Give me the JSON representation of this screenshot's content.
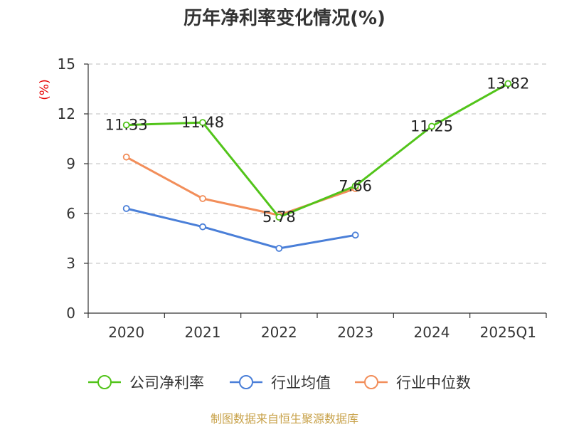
{
  "chart_data": {
    "type": "line",
    "title": "历年净利率变化情况(%)",
    "ylabel": "(%)",
    "xlabel": "",
    "categories": [
      "2020",
      "2021",
      "2022",
      "2023",
      "2024",
      "2025Q1"
    ],
    "ylim": [
      0,
      15
    ],
    "yticks": [
      0,
      3,
      6,
      9,
      12,
      15
    ],
    "grid": true,
    "legend_position": "bottom",
    "series": [
      {
        "name": "公司净利率",
        "color": "#52c41a",
        "values": [
          11.33,
          11.48,
          5.78,
          7.66,
          11.25,
          13.82
        ],
        "data_labels": [
          "11.33",
          "11.48",
          "5.78",
          "7.66",
          "11.25",
          "13.82"
        ]
      },
      {
        "name": "行业均值",
        "color": "#4a7fd8",
        "values": [
          6.3,
          5.2,
          3.9,
          4.7,
          null,
          null
        ]
      },
      {
        "name": "行业中位数",
        "color": "#f28e5a",
        "values": [
          9.4,
          6.9,
          5.9,
          7.5,
          null,
          null
        ]
      }
    ]
  },
  "source": "制图数据来自恒生聚源数据库"
}
